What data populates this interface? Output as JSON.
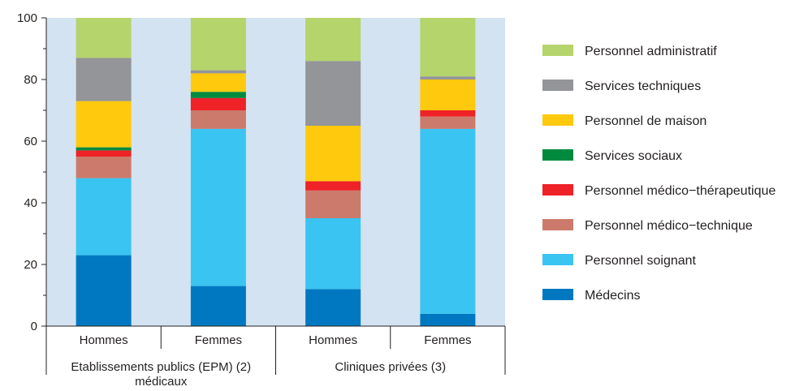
{
  "chart_data": {
    "type": "bar",
    "stacked": true,
    "title": "",
    "xlabel": "",
    "ylabel": "",
    "ylim": [
      0,
      100
    ],
    "yticks": [
      "0",
      "20",
      "40",
      "60",
      "80",
      "100"
    ],
    "grid": false,
    "background": "#d4e3f1",
    "legend_placement": "right",
    "groups": [
      {
        "label": "Etablissements publics (EPM) (2) médicaux",
        "label_lines": [
          "Etablissements publics (EPM) (2)",
          "médicaux"
        ],
        "categories": [
          "Hommes",
          "Femmes"
        ]
      },
      {
        "label": "Cliniques privées (3)",
        "label_lines": [
          "Cliniques privées (3)"
        ],
        "categories": [
          "Hommes",
          "Femmes"
        ]
      }
    ],
    "categories": [
      "Hommes",
      "Femmes",
      "Hommes",
      "Femmes"
    ],
    "series": [
      {
        "name": "Médecins",
        "color": "#0078c1",
        "values": [
          23,
          13,
          12,
          4
        ]
      },
      {
        "name": "Personnel soignant",
        "color": "#3ac4f2",
        "values": [
          25,
          51,
          23,
          60
        ]
      },
      {
        "name": "Personnel médico−technique",
        "color": "#cc7a6b",
        "values": [
          7,
          6,
          9,
          4
        ]
      },
      {
        "name": "Personnel médico−thérapeutique",
        "color": "#ee2227",
        "values": [
          2,
          4,
          3,
          2
        ]
      },
      {
        "name": "Services sociaux",
        "color": "#008a3e",
        "values": [
          1,
          2,
          0,
          0
        ]
      },
      {
        "name": "Personnel de maison",
        "color": "#ffc90e",
        "values": [
          15,
          6,
          18,
          10
        ]
      },
      {
        "name": "Services techniques",
        "color": "#939598",
        "values": [
          14,
          1,
          21,
          1
        ]
      },
      {
        "name": "Personnel administratif",
        "color": "#b5d46b",
        "values": [
          13,
          17,
          14,
          19
        ]
      }
    ]
  }
}
